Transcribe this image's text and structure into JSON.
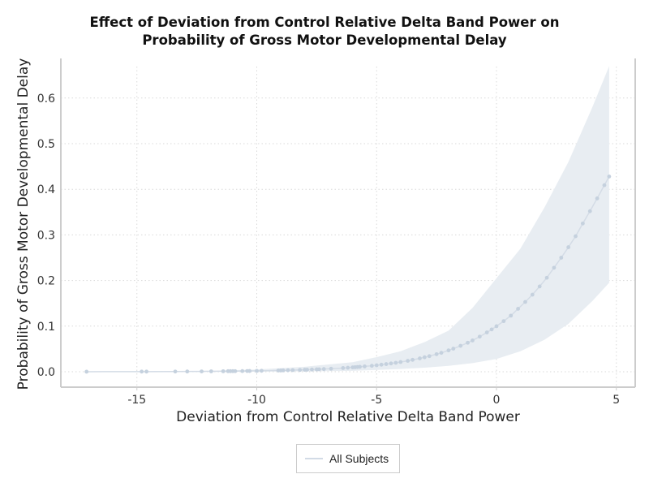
{
  "chart_data": {
    "type": "line",
    "title_line1": "Effect of Deviation from Control Relative Delta Band Power on",
    "title_line2": "Probability of Gross Motor Developmental Delay",
    "xlabel": "Deviation from Control Relative Delta Band Power",
    "ylabel": "Probability of Gross Motor Developmental Delay",
    "xlim": [
      -18.5,
      5.8
    ],
    "ylim": [
      -0.033,
      0.69
    ],
    "xticks": [
      -15,
      -10,
      -5,
      0,
      5
    ],
    "xtick_labels": [
      "-15",
      "-10",
      "-5",
      "0",
      "5"
    ],
    "yticks": [
      0.0,
      0.1,
      0.2,
      0.3,
      0.4,
      0.5,
      0.6
    ],
    "ytick_labels": [
      "0.0",
      "0.1",
      "0.2",
      "0.3",
      "0.4",
      "0.5",
      "0.6"
    ],
    "grid": true,
    "legend": {
      "position": "bottom-center",
      "entries": [
        "All Subjects"
      ]
    },
    "colors": {
      "band": "#e8edf2",
      "line": "#d4dce6",
      "points": "#c5d1de",
      "grid": "#d9d9d9",
      "spine": "#cccccc"
    },
    "series": [
      {
        "name": "All Subjects",
        "x": [
          -17.1,
          -14.8,
          -14.6,
          -13.4,
          -12.9,
          -12.3,
          -11.9,
          -11.4,
          -11.2,
          -11.1,
          -11.0,
          -10.9,
          -10.6,
          -10.4,
          -10.3,
          -10.0,
          -9.8,
          -9.1,
          -9.0,
          -8.9,
          -8.7,
          -8.5,
          -8.2,
          -8.0,
          -7.9,
          -7.7,
          -7.5,
          -7.4,
          -7.2,
          -6.9,
          -6.4,
          -6.2,
          -6.0,
          -5.9,
          -5.8,
          -5.7,
          -5.5,
          -5.2,
          -5.0,
          -4.8,
          -4.6,
          -4.4,
          -4.2,
          -4.0,
          -3.7,
          -3.5,
          -3.2,
          -3.0,
          -2.8,
          -2.5,
          -2.3,
          -2.0,
          -1.8,
          -1.5,
          -1.2,
          -1.0,
          -0.7,
          -0.4,
          -0.2,
          0.0,
          0.3,
          0.6,
          0.9,
          1.2,
          1.5,
          1.8,
          2.1,
          2.4,
          2.7,
          3.0,
          3.3,
          3.6,
          3.9,
          4.2,
          4.5,
          4.7
        ],
        "y": [
          0.0001,
          0.0003,
          0.0003,
          0.0005,
          0.0006,
          0.0007,
          0.0009,
          0.0011,
          0.0012,
          0.0012,
          0.0013,
          0.0013,
          0.0015,
          0.0016,
          0.0017,
          0.0019,
          0.0021,
          0.0027,
          0.0028,
          0.003,
          0.0032,
          0.0035,
          0.0039,
          0.0043,
          0.0044,
          0.0048,
          0.0052,
          0.0054,
          0.0059,
          0.0066,
          0.0081,
          0.0088,
          0.0096,
          0.0099,
          0.0103,
          0.0108,
          0.0117,
          0.0131,
          0.0142,
          0.0155,
          0.0168,
          0.0182,
          0.0196,
          0.0213,
          0.0239,
          0.0261,
          0.0293,
          0.0317,
          0.0342,
          0.0385,
          0.0415,
          0.0468,
          0.0506,
          0.0568,
          0.0636,
          0.0686,
          0.077,
          0.0862,
          0.0928,
          0.0998,
          0.111,
          0.123,
          0.138,
          0.153,
          0.169,
          0.187,
          0.206,
          0.228,
          0.25,
          0.273,
          0.297,
          0.325,
          0.352,
          0.38,
          0.409,
          0.428
        ]
      }
    ],
    "confidence_band": {
      "x": [
        -17.1,
        -12,
        -10,
        -8,
        -6,
        -5,
        -4,
        -3,
        -2,
        -1,
        0,
        1,
        2,
        3,
        4,
        4.7
      ],
      "upper": [
        0.0005,
        0.002,
        0.005,
        0.011,
        0.021,
        0.032,
        0.045,
        0.065,
        0.09,
        0.14,
        0.205,
        0.27,
        0.36,
        0.46,
        0.58,
        0.67
      ],
      "lower": [
        0.0,
        0.0,
        0.0002,
        0.0007,
        0.002,
        0.004,
        0.006,
        0.009,
        0.013,
        0.019,
        0.028,
        0.045,
        0.07,
        0.105,
        0.155,
        0.195
      ]
    }
  }
}
